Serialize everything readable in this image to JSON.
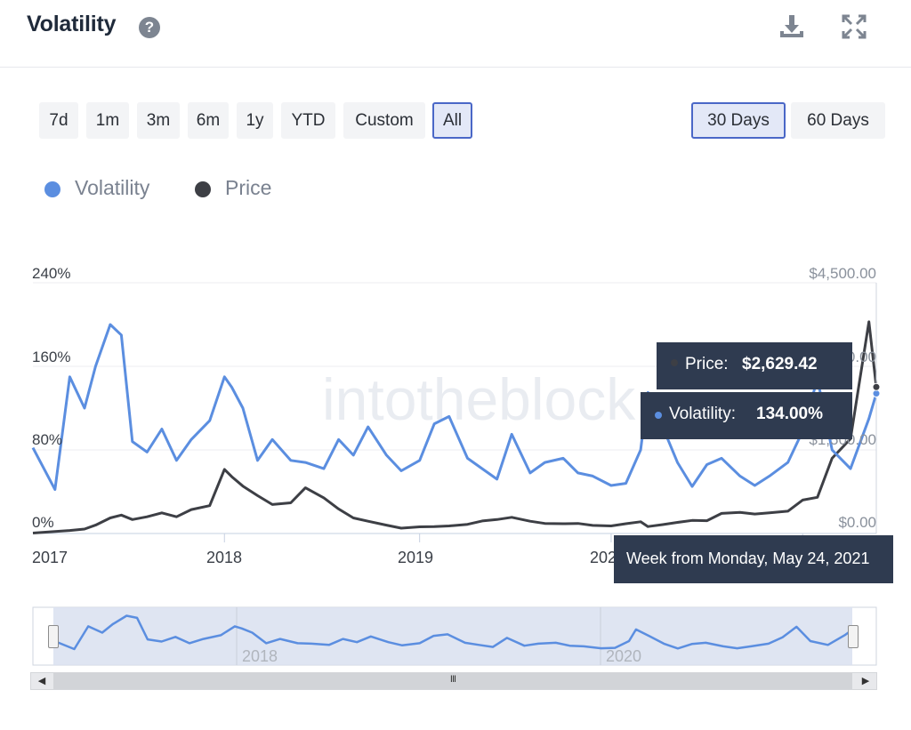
{
  "header": {
    "title": "Volatility",
    "help_glyph": "?",
    "icons": [
      "download-icon",
      "fullscreen-icon"
    ]
  },
  "range_buttons": [
    {
      "label": "7d",
      "active": false
    },
    {
      "label": "1m",
      "active": false
    },
    {
      "label": "3m",
      "active": false
    },
    {
      "label": "6m",
      "active": false
    },
    {
      "label": "1y",
      "active": false
    },
    {
      "label": "YTD",
      "active": false
    },
    {
      "label": "Custom",
      "active": false
    },
    {
      "label": "All",
      "active": true
    }
  ],
  "period_buttons": [
    {
      "label": "30 Days",
      "active": true
    },
    {
      "label": "60 Days",
      "active": false
    }
  ],
  "legend": [
    {
      "label": "Volatility",
      "color": "#5b8ee0"
    },
    {
      "label": "Price",
      "color": "#3d3f45"
    }
  ],
  "watermark": "intotheblock",
  "tooltip": {
    "price_label": "Price: ",
    "price_value": "$2,629.42",
    "volatility_label": "Volatility: ",
    "volatility_value": "134.00%",
    "date_label": "Week from Monday, May 24, 2021"
  },
  "navigator": {
    "scroll_glyph": "III",
    "year_labels": [
      "2018",
      "2020"
    ]
  },
  "chart_data": {
    "type": "line",
    "x": [
      "2017-01-02",
      "2017-02-13",
      "2017-03-13",
      "2017-04-10",
      "2017-05-01",
      "2017-05-29",
      "2017-06-19",
      "2017-07-10",
      "2017-08-07",
      "2017-09-04",
      "2017-10-02",
      "2017-10-30",
      "2017-12-04",
      "2018-01-01",
      "2018-01-15",
      "2018-02-05",
      "2018-03-05",
      "2018-04-02",
      "2018-05-07",
      "2018-06-04",
      "2018-07-09",
      "2018-08-06",
      "2018-09-03",
      "2018-10-01",
      "2018-11-05",
      "2018-12-03",
      "2019-01-07",
      "2019-02-04",
      "2019-03-04",
      "2019-04-08",
      "2019-05-06",
      "2019-06-03",
      "2019-07-01",
      "2019-08-05",
      "2019-09-02",
      "2019-10-07",
      "2019-11-04",
      "2019-12-02",
      "2020-01-06",
      "2020-02-03",
      "2020-03-02",
      "2020-03-16",
      "2020-04-13",
      "2020-05-11",
      "2020-06-08",
      "2020-07-06",
      "2020-08-03",
      "2020-09-07",
      "2020-10-05",
      "2020-11-02",
      "2020-12-07",
      "2021-01-04",
      "2021-02-01",
      "2021-03-01",
      "2021-04-05",
      "2021-05-10",
      "2021-05-24"
    ],
    "series": [
      {
        "name": "Volatility",
        "axis": "left",
        "unit": "%",
        "values": [
          82,
          42,
          150,
          120,
          160,
          200,
          190,
          88,
          78,
          100,
          70,
          90,
          108,
          150,
          140,
          120,
          70,
          90,
          70,
          68,
          62,
          90,
          75,
          102,
          75,
          60,
          70,
          105,
          112,
          72,
          62,
          52,
          95,
          58,
          68,
          72,
          58,
          55,
          46,
          48,
          80,
          135,
          102,
          68,
          45,
          66,
          72,
          55,
          46,
          55,
          68,
          98,
          148,
          80,
          62,
          110,
          134
        ]
      },
      {
        "name": "Price",
        "axis": "right",
        "unit": "$",
        "values": [
          8,
          35,
          55,
          80,
          150,
          280,
          330,
          250,
          300,
          370,
          300,
          430,
          500,
          1150,
          1020,
          850,
          680,
          520,
          550,
          820,
          640,
          440,
          280,
          220,
          150,
          95,
          120,
          125,
          135,
          165,
          225,
          250,
          290,
          220,
          180,
          175,
          180,
          145,
          135,
          175,
          210,
          125,
          160,
          200,
          235,
          230,
          360,
          380,
          350,
          370,
          400,
          600,
          650,
          1350,
          1700,
          3800,
          2629.42
        ]
      }
    ],
    "y_left": {
      "min": 0,
      "max": 240,
      "ticks": [
        "0%",
        "80%",
        "160%",
        "240%"
      ]
    },
    "y_right": {
      "min": 0,
      "max": 4500,
      "ticks": [
        "$0.00",
        "$1,500.00",
        "$3,000.00",
        "$4,500.00"
      ]
    },
    "x_tick_labels": [
      "2017",
      "2018",
      "2019",
      "2020",
      "2021"
    ],
    "legend_position": "top-left",
    "grid": true
  }
}
